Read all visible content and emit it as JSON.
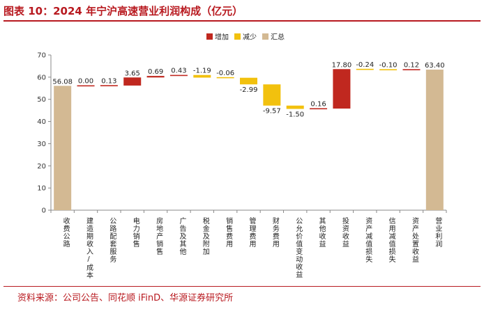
{
  "page": {
    "title": "图表 10：2024 年宁沪高速营业利润构成（亿元）",
    "source": "资料来源：公司公告、同花顺 iFinD、华源证券研究所"
  },
  "colors": {
    "increase": "#c0281f",
    "decrease": "#f2c10e",
    "total": "#d3b993",
    "accent": "#b8191f"
  },
  "chart_data": {
    "type": "bar",
    "subtype": "waterfall",
    "title": "",
    "xlabel": "",
    "ylabel": "",
    "ylim": [
      0,
      70
    ],
    "yticks": [
      0,
      10,
      20,
      30,
      40,
      50,
      60,
      70
    ],
    "grid": false,
    "legend_position": "top",
    "legend": [
      {
        "key": "increase",
        "label": "增加"
      },
      {
        "key": "decrease",
        "label": "减少"
      },
      {
        "key": "total",
        "label": "汇总"
      }
    ],
    "categories": [
      "收费公路",
      "建造期收入/成本",
      "公路配套服务",
      "电力销售",
      "房地产销售",
      "广告及其他",
      "税金及附加",
      "销售费用",
      "管理费用",
      "财务费用",
      "公允价值变动收益",
      "其他收益",
      "投资收益",
      "资产减值损失",
      "信用减值损失",
      "资产处置收益",
      "营业利润"
    ],
    "values": [
      56.08,
      0.0,
      0.13,
      3.65,
      0.69,
      0.43,
      -1.19,
      -0.06,
      -2.99,
      -9.57,
      -1.5,
      0.16,
      17.8,
      -0.24,
      -0.1,
      0.12,
      63.4
    ],
    "value_labels": [
      "56.08",
      "0.00",
      "0.13",
      "3.65",
      "0.69",
      "0.43",
      "-1.19",
      "-0.06",
      "-2.99",
      "-9.57",
      "-1.50",
      "0.16",
      "17.80",
      "-0.24",
      "-0.10",
      "0.12",
      "63.40"
    ],
    "kinds": [
      "total",
      "increase",
      "increase",
      "increase",
      "increase",
      "increase",
      "decrease",
      "decrease",
      "decrease",
      "decrease",
      "decrease",
      "increase",
      "increase",
      "decrease",
      "decrease",
      "increase",
      "total"
    ]
  }
}
